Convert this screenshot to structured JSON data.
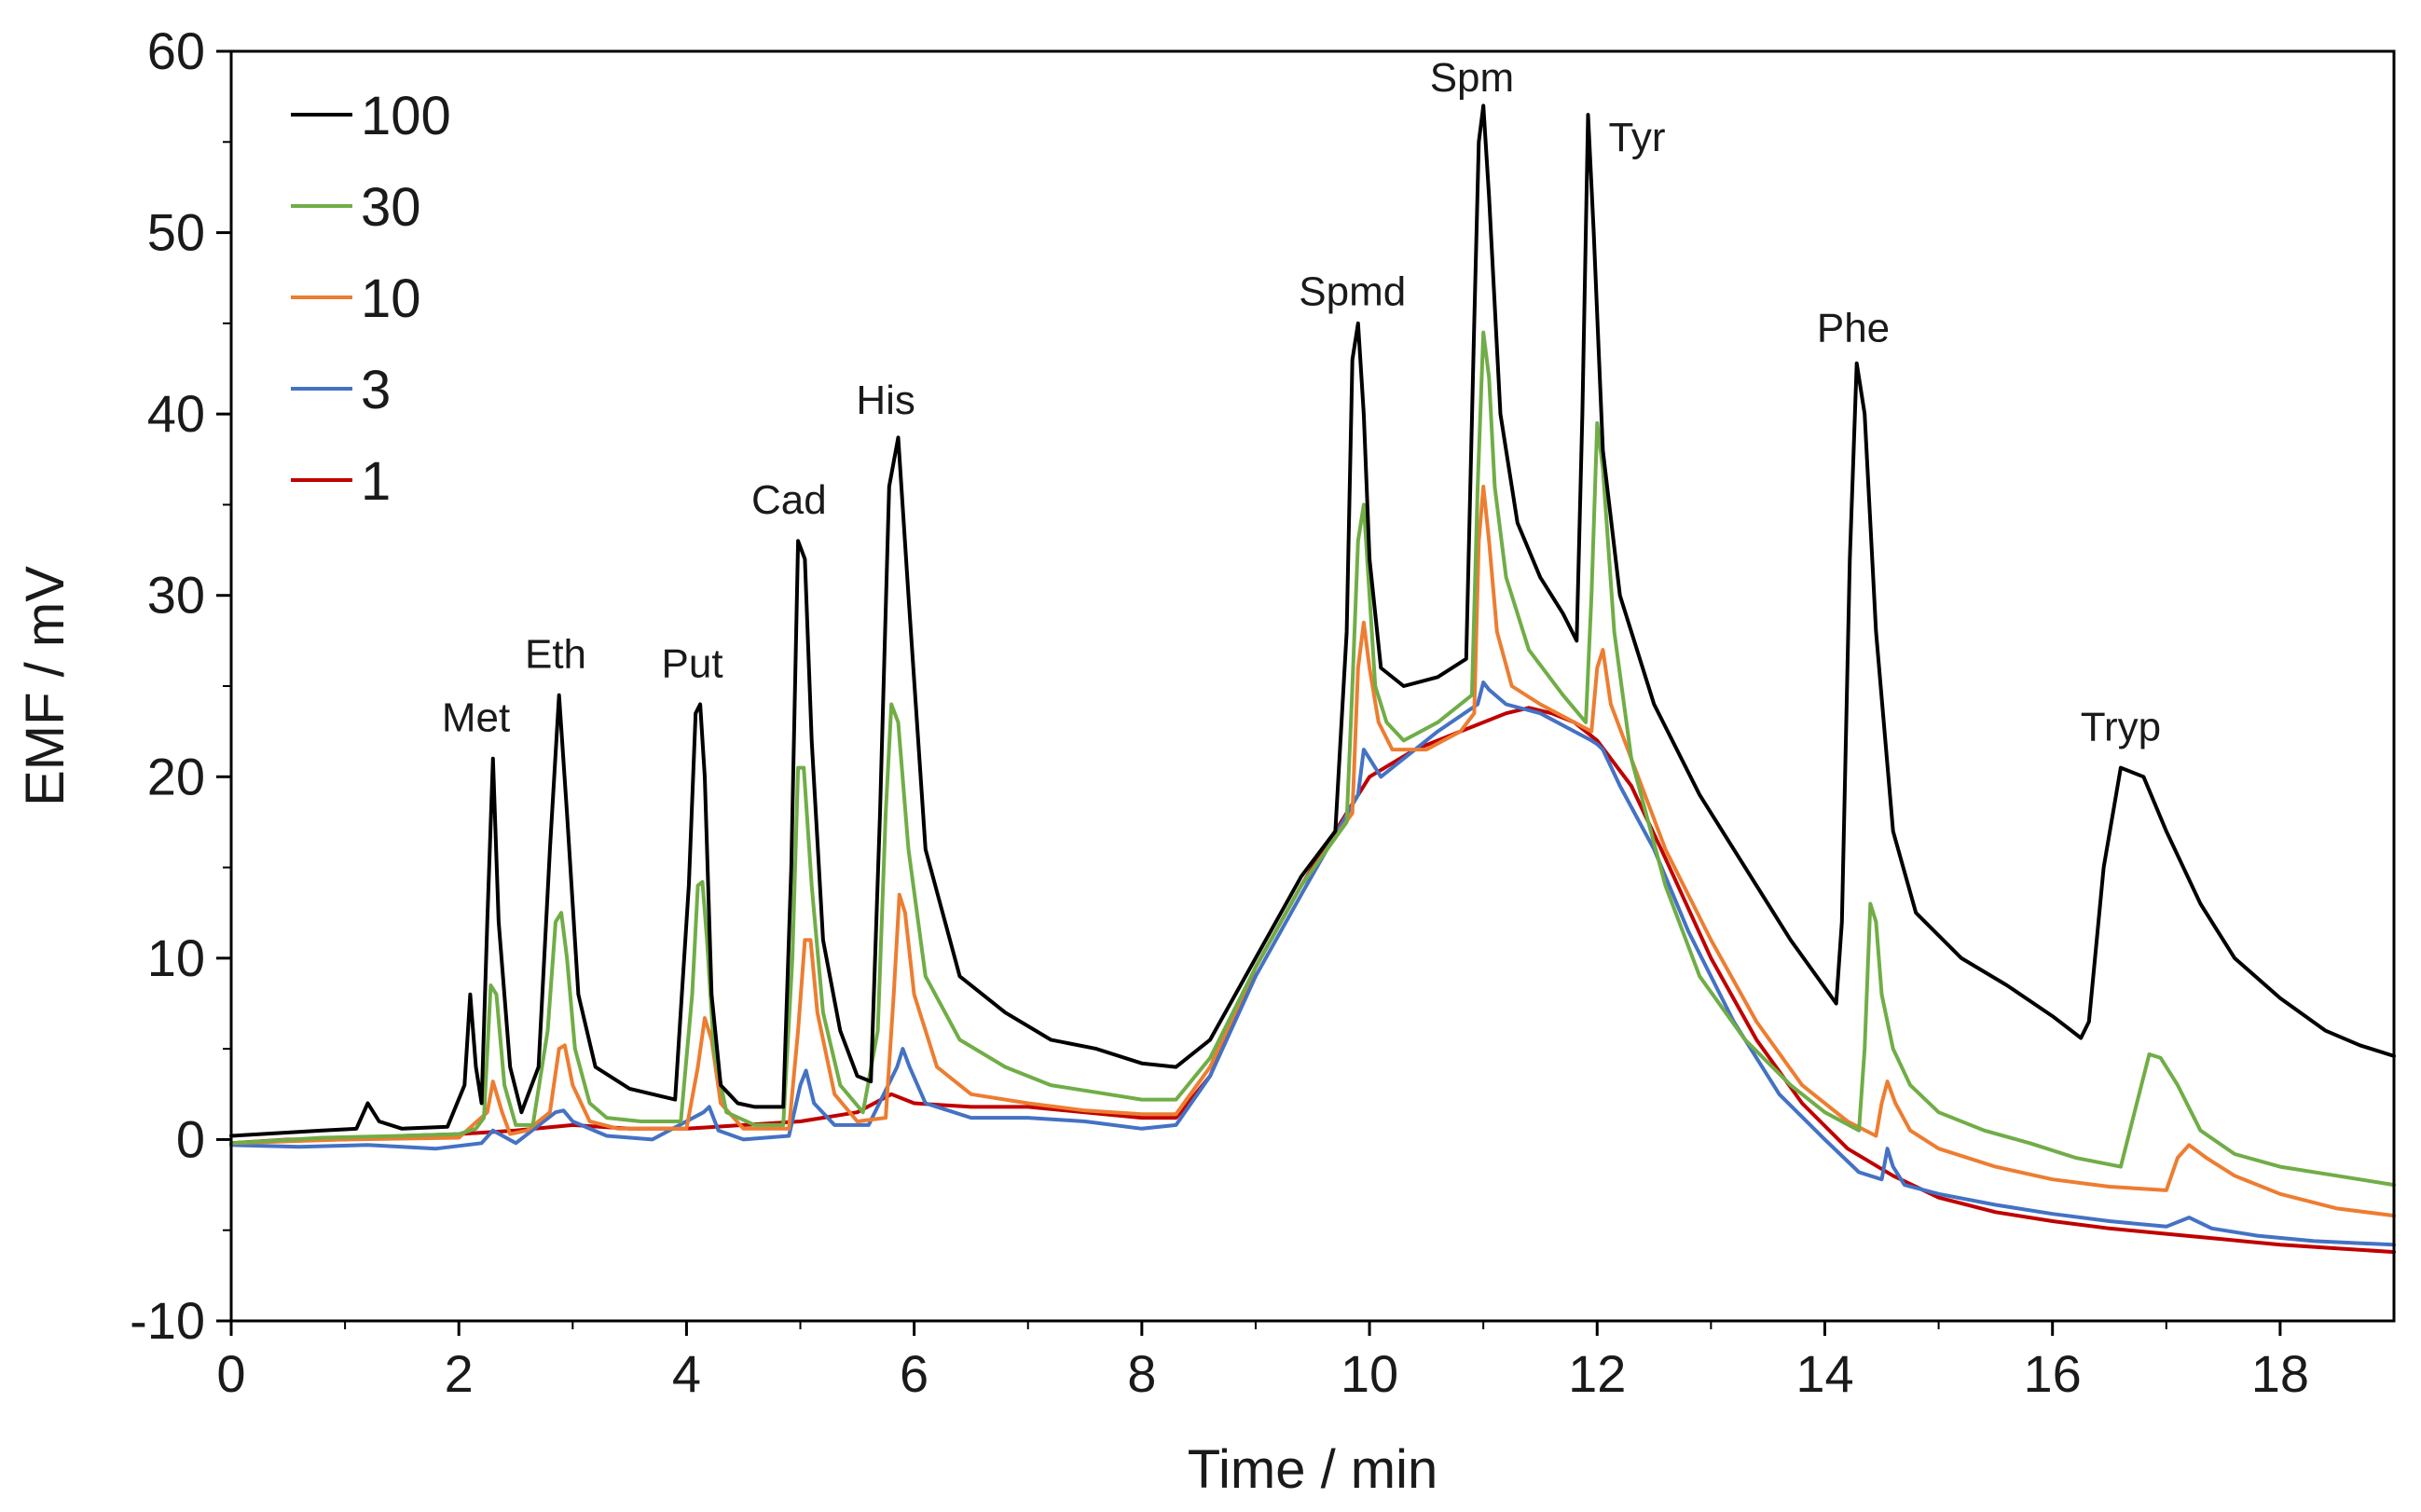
{
  "chart_data": {
    "type": "line",
    "title": "",
    "xlabel": "Time / min",
    "ylabel": "EMF / mV",
    "xlim": [
      0,
      19
    ],
    "ylim": [
      -10,
      60
    ],
    "x_ticks": [
      0,
      2,
      4,
      6,
      8,
      10,
      12,
      14,
      16,
      18
    ],
    "y_ticks": [
      -10,
      0,
      10,
      20,
      30,
      40,
      50,
      60
    ],
    "x_tick_labels": [
      "0",
      "2",
      "4",
      "6",
      "8",
      "10",
      "12",
      "14",
      "16",
      "18"
    ],
    "y_tick_labels": [
      "-10",
      "0",
      "10",
      "20",
      "30",
      "40",
      "50",
      "60"
    ],
    "grid": false,
    "legend": {
      "position": "top-left"
    },
    "peak_labels": [
      {
        "text": "Met",
        "x": 2.15,
        "y": 22.5
      },
      {
        "text": "Eth",
        "x": 2.85,
        "y": 26
      },
      {
        "text": "Put",
        "x": 4.05,
        "y": 25.5
      },
      {
        "text": "Cad",
        "x": 4.9,
        "y": 34.5
      },
      {
        "text": "His",
        "x": 5.75,
        "y": 40
      },
      {
        "text": "Spmd",
        "x": 9.85,
        "y": 46
      },
      {
        "text": "Spm",
        "x": 10.9,
        "y": 57.8
      },
      {
        "text": "Tyr",
        "x": 12.35,
        "y": 54.5
      },
      {
        "text": "Phe",
        "x": 14.25,
        "y": 44
      },
      {
        "text": "Tryp",
        "x": 16.6,
        "y": 22
      }
    ],
    "series": [
      {
        "name": "100",
        "color": "#000000",
        "x": [
          0,
          0.8,
          1.1,
          1.2,
          1.3,
          1.5,
          1.9,
          2.05,
          2.1,
          2.15,
          2.2,
          2.25,
          2.3,
          2.35,
          2.45,
          2.55,
          2.7,
          2.8,
          2.88,
          2.95,
          3.05,
          3.2,
          3.5,
          3.9,
          4.02,
          4.08,
          4.12,
          4.16,
          4.22,
          4.3,
          4.45,
          4.6,
          4.85,
          4.92,
          4.98,
          5.04,
          5.1,
          5.2,
          5.35,
          5.5,
          5.62,
          5.7,
          5.78,
          5.86,
          5.95,
          6.1,
          6.4,
          6.8,
          7.2,
          7.6,
          8.0,
          8.3,
          8.6,
          9.0,
          9.4,
          9.7,
          9.8,
          9.85,
          9.9,
          9.95,
          10.0,
          10.1,
          10.3,
          10.6,
          10.85,
          10.92,
          10.96,
          11.0,
          11.05,
          11.15,
          11.3,
          11.5,
          11.7,
          11.82,
          11.87,
          11.92,
          11.97,
          12.05,
          12.2,
          12.5,
          12.9,
          13.3,
          13.7,
          14.1,
          14.15,
          14.22,
          14.28,
          14.35,
          14.45,
          14.6,
          14.8,
          15.2,
          15.6,
          16.0,
          16.25,
          16.32,
          16.45,
          16.6,
          16.8,
          17.0,
          17.3,
          17.6,
          18.0,
          18.4,
          18.7,
          19.0
        ],
        "y": [
          0.2,
          0.5,
          0.6,
          2.0,
          1.0,
          0.6,
          0.7,
          3.0,
          8.0,
          4.0,
          2.0,
          12.0,
          21.0,
          12.0,
          4.0,
          1.5,
          4.0,
          16.0,
          24.5,
          18.0,
          8.0,
          4.0,
          2.8,
          2.2,
          14.0,
          23.5,
          24.0,
          20.0,
          8.0,
          3.0,
          2.0,
          1.8,
          1.8,
          15.0,
          33.0,
          32.0,
          22.0,
          11.0,
          6.0,
          3.5,
          3.2,
          18.0,
          36.0,
          38.7,
          30.0,
          16.0,
          9.0,
          7.0,
          5.5,
          5.0,
          4.2,
          4.0,
          5.5,
          10.0,
          14.5,
          17.0,
          28.0,
          43.0,
          45.0,
          40.0,
          32.0,
          26.0,
          25.0,
          25.5,
          26.5,
          45.0,
          55.0,
          57.0,
          52.0,
          40.0,
          34.0,
          31.0,
          29.0,
          27.5,
          40.0,
          56.5,
          50.0,
          38.0,
          30.0,
          24.0,
          19.0,
          15.0,
          11.0,
          7.5,
          12.0,
          32.0,
          42.8,
          40.0,
          28.0,
          17.0,
          12.5,
          10.0,
          8.5,
          6.8,
          5.6,
          6.5,
          15.0,
          20.5,
          20.0,
          17.0,
          13.0,
          10.0,
          7.8,
          6.0,
          5.2,
          4.6
        ]
      },
      {
        "name": "30",
        "color": "#70AD47",
        "x": [
          0,
          0.8,
          1.5,
          2.0,
          2.15,
          2.22,
          2.28,
          2.33,
          2.4,
          2.5,
          2.65,
          2.78,
          2.85,
          2.9,
          2.95,
          3.02,
          3.15,
          3.3,
          3.6,
          3.95,
          4.05,
          4.1,
          4.14,
          4.18,
          4.24,
          4.35,
          4.6,
          4.85,
          4.93,
          4.98,
          5.03,
          5.1,
          5.2,
          5.35,
          5.55,
          5.68,
          5.75,
          5.8,
          5.86,
          5.95,
          6.1,
          6.4,
          6.8,
          7.2,
          7.6,
          8.0,
          8.3,
          8.6,
          9.0,
          9.4,
          9.8,
          9.85,
          9.9,
          9.95,
          10.0,
          10.05,
          10.15,
          10.3,
          10.6,
          10.9,
          10.95,
          11.0,
          11.05,
          11.1,
          11.2,
          11.4,
          11.7,
          11.9,
          11.95,
          12.0,
          12.05,
          12.15,
          12.3,
          12.6,
          12.9,
          13.3,
          13.7,
          14.0,
          14.3,
          14.35,
          14.4,
          14.45,
          14.5,
          14.6,
          14.75,
          15.0,
          15.4,
          15.8,
          16.2,
          16.6,
          16.7,
          16.85,
          16.95,
          17.1,
          17.3,
          17.6,
          18.0,
          18.5,
          19.0
        ],
        "y": [
          -0.2,
          0.1,
          0.2,
          0.3,
          0.6,
          1.2,
          8.5,
          8.0,
          3.0,
          0.8,
          0.8,
          6.0,
          12.0,
          12.5,
          10.0,
          5.0,
          2.0,
          1.2,
          1.0,
          1.0,
          8.0,
          14.0,
          14.2,
          11.0,
          5.0,
          1.5,
          0.8,
          0.8,
          10.0,
          20.5,
          20.5,
          14.0,
          7.0,
          3.0,
          1.5,
          6.0,
          18.0,
          24.0,
          23.0,
          16.0,
          9.0,
          5.5,
          4.0,
          3.0,
          2.6,
          2.2,
          2.2,
          4.5,
          9.5,
          14.0,
          17.5,
          25.0,
          33.0,
          35.0,
          30.0,
          25.0,
          23.0,
          22.0,
          23.0,
          24.5,
          36.0,
          44.5,
          42.0,
          36.0,
          31.0,
          27.0,
          24.5,
          23.0,
          30.0,
          39.5,
          37.0,
          28.0,
          21.0,
          14.0,
          9.0,
          5.5,
          3.0,
          1.5,
          0.5,
          5.0,
          13.0,
          12.0,
          8.0,
          5.0,
          3.0,
          1.5,
          0.5,
          -0.2,
          -1.0,
          -1.5,
          1.0,
          4.7,
          4.5,
          3.0,
          0.5,
          -0.8,
          -1.5,
          -2.0,
          -2.5
        ]
      },
      {
        "name": "10",
        "color": "#ED7D31",
        "x": [
          0,
          1.0,
          2.0,
          2.25,
          2.3,
          2.38,
          2.45,
          2.6,
          2.8,
          2.88,
          2.93,
          3.0,
          3.15,
          3.4,
          4.0,
          4.1,
          4.16,
          4.22,
          4.3,
          4.5,
          4.9,
          4.98,
          5.04,
          5.09,
          5.15,
          5.3,
          5.5,
          5.75,
          5.82,
          5.87,
          5.92,
          6.0,
          6.2,
          6.5,
          7.0,
          7.5,
          8.0,
          8.3,
          8.6,
          9.0,
          9.4,
          9.85,
          9.9,
          9.95,
          10.0,
          10.08,
          10.2,
          10.5,
          10.8,
          10.92,
          10.96,
          11.0,
          11.05,
          11.12,
          11.25,
          11.5,
          11.8,
          11.95,
          12.0,
          12.05,
          12.12,
          12.3,
          12.6,
          13.0,
          13.4,
          13.8,
          14.2,
          14.45,
          14.5,
          14.55,
          14.62,
          14.75,
          15.0,
          15.5,
          16.0,
          16.5,
          17.0,
          17.1,
          17.2,
          17.35,
          17.6,
          18.0,
          18.5,
          19.0
        ],
        "y": [
          -0.2,
          0.0,
          0.1,
          1.5,
          3.2,
          1.5,
          0.3,
          0.5,
          1.5,
          5.0,
          5.2,
          3.0,
          1.0,
          0.6,
          0.6,
          4.0,
          6.7,
          5.5,
          2.0,
          0.6,
          0.6,
          6.0,
          11.0,
          11.0,
          7.0,
          2.5,
          1.0,
          1.2,
          8.0,
          13.5,
          12.5,
          8.0,
          4.0,
          2.5,
          2.0,
          1.6,
          1.4,
          1.4,
          4.0,
          9.5,
          14.0,
          18.0,
          26.0,
          28.5,
          26.0,
          23.0,
          21.5,
          21.5,
          22.5,
          23.5,
          33.0,
          36.0,
          33.0,
          28.0,
          25.0,
          24.0,
          23.0,
          22.5,
          26.0,
          27.0,
          24.0,
          21.0,
          16.0,
          11.0,
          6.5,
          3.0,
          1.0,
          0.2,
          2.0,
          3.2,
          2.0,
          0.5,
          -0.5,
          -1.5,
          -2.2,
          -2.6,
          -2.8,
          -1.0,
          -0.3,
          -1.0,
          -2.0,
          -3.0,
          -3.8,
          -4.2
        ]
      },
      {
        "name": "3",
        "color": "#4472C4",
        "x": [
          0,
          0.6,
          1.2,
          1.8,
          2.2,
          2.3,
          2.5,
          2.85,
          2.92,
          3.0,
          3.3,
          3.7,
          4.15,
          4.2,
          4.28,
          4.5,
          4.9,
          5.0,
          5.05,
          5.12,
          5.3,
          5.6,
          5.85,
          5.9,
          5.96,
          6.1,
          6.5,
          7.0,
          7.5,
          8.0,
          8.3,
          8.6,
          9.0,
          9.4,
          9.9,
          9.95,
          10.0,
          10.1,
          10.3,
          10.6,
          10.95,
          11.0,
          11.05,
          11.2,
          11.5,
          11.8,
          11.95,
          12.0,
          12.05,
          12.2,
          12.5,
          12.8,
          13.2,
          13.6,
          14.0,
          14.3,
          14.5,
          14.55,
          14.6,
          14.7,
          15.0,
          15.5,
          16.0,
          16.5,
          17.0,
          17.2,
          17.4,
          17.8,
          18.3,
          19.0
        ],
        "y": [
          -0.3,
          -0.4,
          -0.3,
          -0.5,
          -0.2,
          0.5,
          -0.2,
          1.5,
          1.6,
          1.0,
          0.2,
          0.0,
          1.5,
          1.8,
          0.5,
          0.0,
          0.2,
          3.0,
          3.8,
          2.0,
          0.8,
          0.8,
          4.0,
          5.0,
          4.0,
          2.0,
          1.2,
          1.2,
          1.0,
          0.6,
          0.8,
          3.5,
          9.0,
          13.5,
          19.0,
          21.5,
          21.0,
          20.0,
          21.0,
          22.5,
          24.0,
          25.2,
          24.8,
          24.0,
          23.5,
          22.5,
          22.0,
          21.8,
          21.5,
          19.5,
          16.0,
          11.5,
          6.5,
          2.5,
          0.0,
          -1.8,
          -2.2,
          -0.5,
          -1.5,
          -2.5,
          -3.0,
          -3.6,
          -4.1,
          -4.5,
          -4.8,
          -4.3,
          -4.9,
          -5.3,
          -5.6,
          -5.8
        ]
      },
      {
        "name": "1",
        "color": "#C00000",
        "x": [
          0,
          0.5,
          1.0,
          1.5,
          2.0,
          2.5,
          3.0,
          3.5,
          4.0,
          4.5,
          5.0,
          5.5,
          5.8,
          6.0,
          6.5,
          7.0,
          7.5,
          8.0,
          8.3,
          8.6,
          9.0,
          9.4,
          9.8,
          10.0,
          10.4,
          10.8,
          11.2,
          11.4,
          11.6,
          11.8,
          12.0,
          12.3,
          12.6,
          13.0,
          13.4,
          13.8,
          14.2,
          14.6,
          15.0,
          15.5,
          16.0,
          16.5,
          17.0,
          17.5,
          18.0,
          18.5,
          19.0
        ],
        "y": [
          -0.2,
          0.0,
          0.0,
          0.2,
          0.3,
          0.5,
          0.8,
          0.6,
          0.6,
          0.8,
          1.0,
          1.5,
          2.5,
          2.0,
          1.8,
          1.8,
          1.5,
          1.2,
          1.2,
          3.5,
          9.5,
          14.0,
          18.0,
          20.0,
          21.5,
          22.5,
          23.5,
          23.8,
          23.5,
          23.0,
          22.0,
          19.5,
          15.5,
          10.0,
          5.5,
          2.0,
          -0.5,
          -2.0,
          -3.2,
          -4.0,
          -4.5,
          -4.9,
          -5.2,
          -5.5,
          -5.8,
          -6.0,
          -6.2
        ]
      }
    ]
  }
}
